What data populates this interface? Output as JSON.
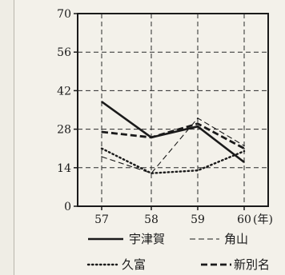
{
  "chart_data": {
    "type": "line",
    "x": [
      "57",
      "58",
      "59",
      "60"
    ],
    "x_unit": "(年)",
    "ylim": [
      0,
      70
    ],
    "yticks": [
      0,
      14,
      28,
      42,
      56,
      70
    ],
    "grid": true,
    "legend_position": "bottom",
    "series": [
      {
        "name": "宇津賀",
        "values": [
          38,
          25,
          29,
          16
        ],
        "style": "solid"
      },
      {
        "name": "角山",
        "values": [
          18,
          12,
          32,
          22
        ],
        "style": "thin-dashed"
      },
      {
        "name": "久富",
        "values": [
          21,
          12,
          13,
          20
        ],
        "style": "dotted"
      },
      {
        "name": "新別名",
        "values": [
          27,
          25,
          30,
          21
        ],
        "style": "bold-dashed"
      }
    ]
  },
  "colors": {
    "ink": "#1a1a1a",
    "grid": "#2a2a2a",
    "background": "#f3f1ea"
  }
}
